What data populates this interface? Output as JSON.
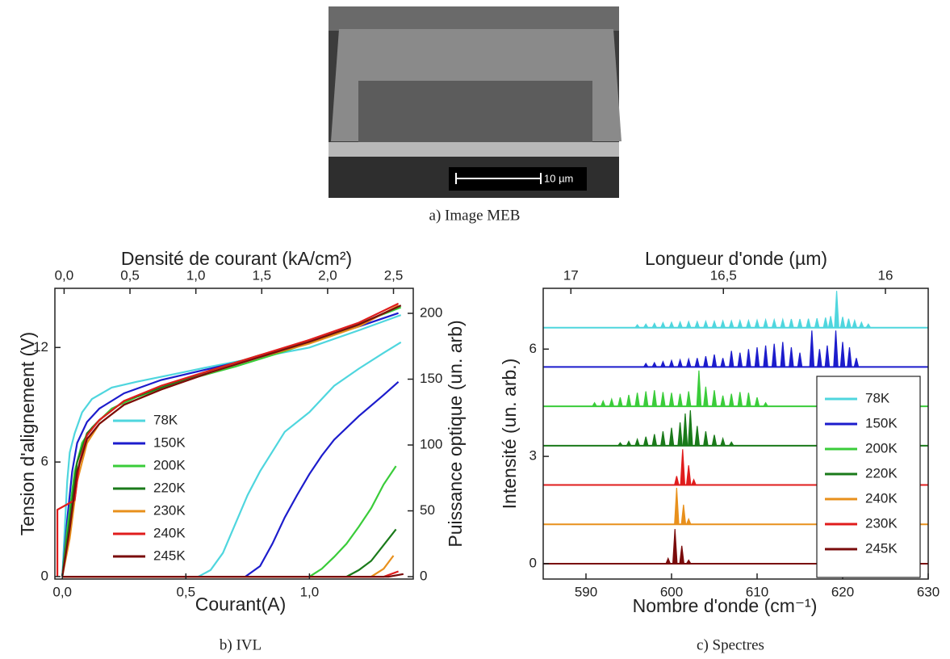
{
  "image": {
    "scale_bar": "10 µm",
    "caption": "a) Image MEB"
  },
  "chart_data": [
    {
      "type": "line",
      "caption": "b) IVL",
      "xlabel": "Courant(A)",
      "x2label": "Densité de courant (kA/cm²)",
      "ylabel": "Tension d'alignement (V)",
      "y2label": "Puissance optique (un. arb)",
      "xlim": [
        -0.03,
        1.42
      ],
      "xticks": [
        {
          "value": 0,
          "label": "0,0"
        },
        {
          "value": 0.5,
          "label": "0,5"
        },
        {
          "value": 1,
          "label": "1,0"
        }
      ],
      "x2lim": [
        -0.07,
        2.65
      ],
      "x2ticks": [
        {
          "value": 0,
          "label": "0,0"
        },
        {
          "value": 0.5,
          "label": "0,5"
        },
        {
          "value": 1,
          "label": "1,0"
        },
        {
          "value": 1.5,
          "label": "1,5"
        },
        {
          "value": 2,
          "label": "2,0"
        },
        {
          "value": 2.5,
          "label": "2,5"
        }
      ],
      "ylim": [
        -0.13,
        15.1
      ],
      "yticks": [
        0,
        6,
        12
      ],
      "y2lim": [
        -1.8,
        219
      ],
      "y2ticks": [
        0,
        50,
        100,
        150,
        200
      ],
      "series": [
        {
          "name": "78K",
          "color": "#4fd6de",
          "x": [
            0,
            0.01,
            0.02,
            0.03,
            0.05,
            0.08,
            0.12,
            0.2,
            0.3,
            0.45,
            0.6,
            0.8,
            1.0,
            1.2,
            1.37
          ],
          "values": [
            0,
            2.5,
            5,
            6.5,
            7.5,
            8.6,
            9.3,
            9.9,
            10.2,
            10.6,
            11.0,
            11.5,
            12.0,
            12.9,
            13.7
          ]
        },
        {
          "name": "150K",
          "color": "#1c1ccc",
          "x": [
            0,
            0.02,
            0.04,
            0.06,
            0.1,
            0.15,
            0.25,
            0.4,
            0.6,
            0.8,
            1.0,
            1.2,
            1.36
          ],
          "values": [
            0,
            3,
            5.5,
            7,
            8.1,
            8.8,
            9.6,
            10.3,
            10.9,
            11.5,
            12.3,
            13.1,
            13.8
          ]
        },
        {
          "name": "200K",
          "color": "#3acc3a",
          "x": [
            0,
            0.02,
            0.05,
            0.08,
            0.12,
            0.2,
            0.3,
            0.5,
            0.7,
            0.9,
            1.1,
            1.25,
            1.37
          ],
          "values": [
            0,
            2.5,
            5.5,
            7,
            7.8,
            8.8,
            9.4,
            10.3,
            11.0,
            11.8,
            12.7,
            13.5,
            14.1
          ]
        },
        {
          "name": "220K",
          "color": "#1a7a1a",
          "x": [
            0,
            0.03,
            0.06,
            0.1,
            0.15,
            0.25,
            0.4,
            0.6,
            0.8,
            1.0,
            1.2,
            1.37
          ],
          "values": [
            0,
            3,
            6,
            7.5,
            8.2,
            9.2,
            9.9,
            10.8,
            11.6,
            12.3,
            13.2,
            14.2
          ]
        },
        {
          "name": "230K",
          "color": "#e8901c",
          "x": [
            0,
            0.03,
            0.06,
            0.1,
            0.15,
            0.25,
            0.4,
            0.6,
            0.8,
            1.0,
            1.2,
            1.36
          ],
          "values": [
            0,
            2,
            5,
            7,
            8,
            9,
            9.8,
            10.7,
            11.5,
            12.2,
            13.1,
            14.2
          ]
        },
        {
          "name": "240K",
          "color": "#e01c1c",
          "x": [
            -0.02,
            -0.02,
            0.05,
            0.07,
            0.1,
            0.15,
            0.25,
            0.4,
            0.6,
            0.8,
            1.0,
            1.2,
            1.36
          ],
          "values": [
            0,
            3.5,
            4,
            6,
            7.4,
            8.2,
            9.2,
            10.0,
            10.8,
            11.6,
            12.4,
            13.3,
            14.3
          ]
        },
        {
          "name": "245K",
          "color": "#7a0c0c",
          "x": [
            0,
            0.03,
            0.06,
            0.1,
            0.15,
            0.25,
            0.4,
            0.6,
            0.8,
            1.0,
            1.2,
            1.37
          ],
          "values": [
            0,
            2.5,
            5.5,
            7.2,
            8,
            9,
            9.8,
            10.7,
            11.5,
            12.3,
            13.2,
            14.2
          ]
        },
        {
          "axis": "y2",
          "color": "#4fd6de",
          "x": [
            0,
            0.55,
            0.6,
            0.65,
            0.7,
            0.75,
            0.8,
            0.85,
            0.9,
            1.0,
            1.1,
            1.2,
            1.3,
            1.37
          ],
          "values": [
            0,
            0,
            5,
            18,
            40,
            62,
            80,
            95,
            110,
            125,
            145,
            158,
            170,
            178
          ]
        },
        {
          "axis": "y2",
          "color": "#1c1ccc",
          "x": [
            0,
            0.74,
            0.8,
            0.85,
            0.9,
            0.95,
            1.0,
            1.05,
            1.1,
            1.2,
            1.3,
            1.36
          ],
          "values": [
            0,
            0,
            8,
            25,
            45,
            62,
            78,
            92,
            104,
            122,
            138,
            148
          ]
        },
        {
          "axis": "y2",
          "color": "#3acc3a",
          "x": [
            0,
            1.0,
            1.05,
            1.1,
            1.15,
            1.2,
            1.25,
            1.3,
            1.35
          ],
          "values": [
            0,
            0,
            6,
            15,
            25,
            38,
            52,
            70,
            84
          ]
        },
        {
          "axis": "y2",
          "color": "#1a7a1a",
          "x": [
            0,
            1.15,
            1.2,
            1.25,
            1.3,
            1.35
          ],
          "values": [
            0,
            0,
            5,
            12,
            24,
            36
          ]
        },
        {
          "axis": "y2",
          "color": "#e8901c",
          "x": [
            0,
            1.25,
            1.3,
            1.34
          ],
          "values": [
            0,
            0,
            6,
            16
          ]
        },
        {
          "axis": "y2",
          "color": "#e01c1c",
          "x": [
            0,
            1.3,
            1.36
          ],
          "values": [
            0,
            0,
            4
          ]
        },
        {
          "axis": "y2",
          "color": "#7a0c0c",
          "x": [
            0,
            1.32,
            1.38
          ],
          "values": [
            0,
            0,
            2
          ]
        }
      ]
    },
    {
      "type": "spectra",
      "caption": "c) Spectres",
      "xlabel": "Nombre d'onde (cm⁻¹)",
      "x2label": "Longueur d'onde (µm)",
      "ylabel": "Intensité (un. arb.)",
      "legend": "lower right",
      "xlim": [
        585,
        630
      ],
      "xticks": [
        590,
        600,
        610,
        620,
        630
      ],
      "x2scale": "reciprocal",
      "x2ticks": [
        17,
        {
          "value": 16.5,
          "label": "16,5"
        },
        16
      ],
      "ylim": [
        -0.43,
        7.7
      ],
      "yticks": [
        0,
        3,
        6
      ],
      "series": [
        {
          "name": "78K",
          "color": "#4fd6de",
          "baseline": 6.6,
          "x": [
            596,
            597,
            598,
            599,
            600,
            601,
            602,
            603,
            604,
            605,
            606,
            607,
            608,
            609,
            610,
            611,
            612,
            613,
            614,
            615,
            616,
            617,
            618,
            618.6,
            619.3,
            620,
            620.7,
            621.4,
            622.2,
            623
          ],
          "values": [
            6.68,
            6.7,
            6.72,
            6.74,
            6.75,
            6.76,
            6.77,
            6.77,
            6.78,
            6.78,
            6.79,
            6.79,
            6.8,
            6.8,
            6.81,
            6.82,
            6.82,
            6.83,
            6.84,
            6.84,
            6.85,
            6.86,
            6.88,
            6.92,
            7.63,
            6.9,
            6.85,
            6.8,
            6.75,
            6.7
          ]
        },
        {
          "name": "150K",
          "color": "#1c1ccc",
          "baseline": 5.5,
          "x": [
            597,
            598,
            599,
            600,
            601,
            602,
            603,
            604,
            605,
            606,
            607,
            608,
            609,
            610,
            611,
            612,
            613,
            614,
            615,
            616.4,
            617.3,
            618.2,
            619.2,
            620,
            620.8,
            621.6
          ],
          "values": [
            5.6,
            5.62,
            5.65,
            5.68,
            5.7,
            5.72,
            5.75,
            5.8,
            5.85,
            5.75,
            5.95,
            5.9,
            6.0,
            6.05,
            6.1,
            6.15,
            6.2,
            6.05,
            5.9,
            6.52,
            6.0,
            6.1,
            6.52,
            6.2,
            6.05,
            5.75
          ]
        },
        {
          "name": "200K",
          "color": "#3acc3a",
          "baseline": 4.4,
          "x": [
            591,
            592,
            593,
            594,
            595,
            596,
            597,
            598,
            599,
            600,
            601,
            602,
            603.2,
            604,
            605,
            606,
            607,
            608,
            609,
            610,
            611
          ],
          "values": [
            4.5,
            4.55,
            4.6,
            4.65,
            4.72,
            4.78,
            4.82,
            4.85,
            4.8,
            4.78,
            4.75,
            4.82,
            5.4,
            4.95,
            4.85,
            4.7,
            4.75,
            4.8,
            4.78,
            4.65,
            4.5
          ]
        },
        {
          "name": "220K",
          "color": "#1a7a1a",
          "baseline": 3.3,
          "x": [
            594,
            595,
            596,
            597,
            598,
            599,
            600,
            601,
            601.6,
            602.2,
            603,
            604,
            605,
            606,
            607
          ],
          "values": [
            3.38,
            3.42,
            3.48,
            3.55,
            3.62,
            3.7,
            3.8,
            3.95,
            4.2,
            4.29,
            3.85,
            3.7,
            3.6,
            3.5,
            3.4
          ]
        },
        {
          "name": "240K",
          "color": "#e8901c",
          "baseline": 1.1,
          "x": [
            600.6,
            601.4,
            602
          ],
          "values": [
            2.12,
            1.65,
            1.25
          ]
        },
        {
          "name": "230K",
          "color": "#e01c1c",
          "baseline": 2.2,
          "x": [
            600.6,
            601.3,
            602,
            602.6
          ],
          "values": [
            2.45,
            3.2,
            2.75,
            2.35
          ]
        },
        {
          "name": "245K",
          "color": "#7a0c0c",
          "baseline": 0,
          "x": [
            599.6,
            600.4,
            601.2,
            602
          ],
          "values": [
            0.15,
            0.97,
            0.5,
            0.1
          ]
        }
      ]
    }
  ]
}
